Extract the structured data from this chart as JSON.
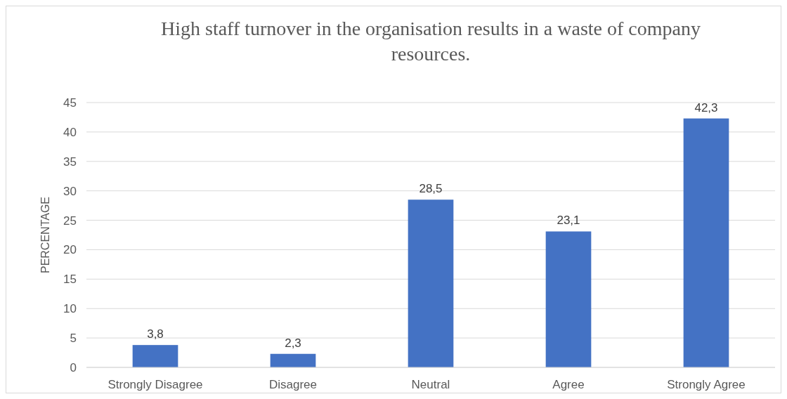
{
  "chart_data": {
    "type": "bar",
    "title": "High staff turnover in the organisation results in a waste of company resources.",
    "ylabel": "PERCENTAGE",
    "categories": [
      "Strongly Disagree",
      "Disagree",
      "Neutral",
      "Agree",
      "Strongly Agree"
    ],
    "values": [
      3.8,
      2.3,
      28.5,
      23.1,
      42.3
    ],
    "value_labels": [
      "3,8",
      "2,3",
      "28,5",
      "23,1",
      "42,3"
    ],
    "color": "#4472c4",
    "ylim": [
      0,
      45
    ],
    "yticks": [
      0,
      5,
      10,
      15,
      20,
      25,
      30,
      35,
      40,
      45
    ],
    "grid": "y"
  }
}
